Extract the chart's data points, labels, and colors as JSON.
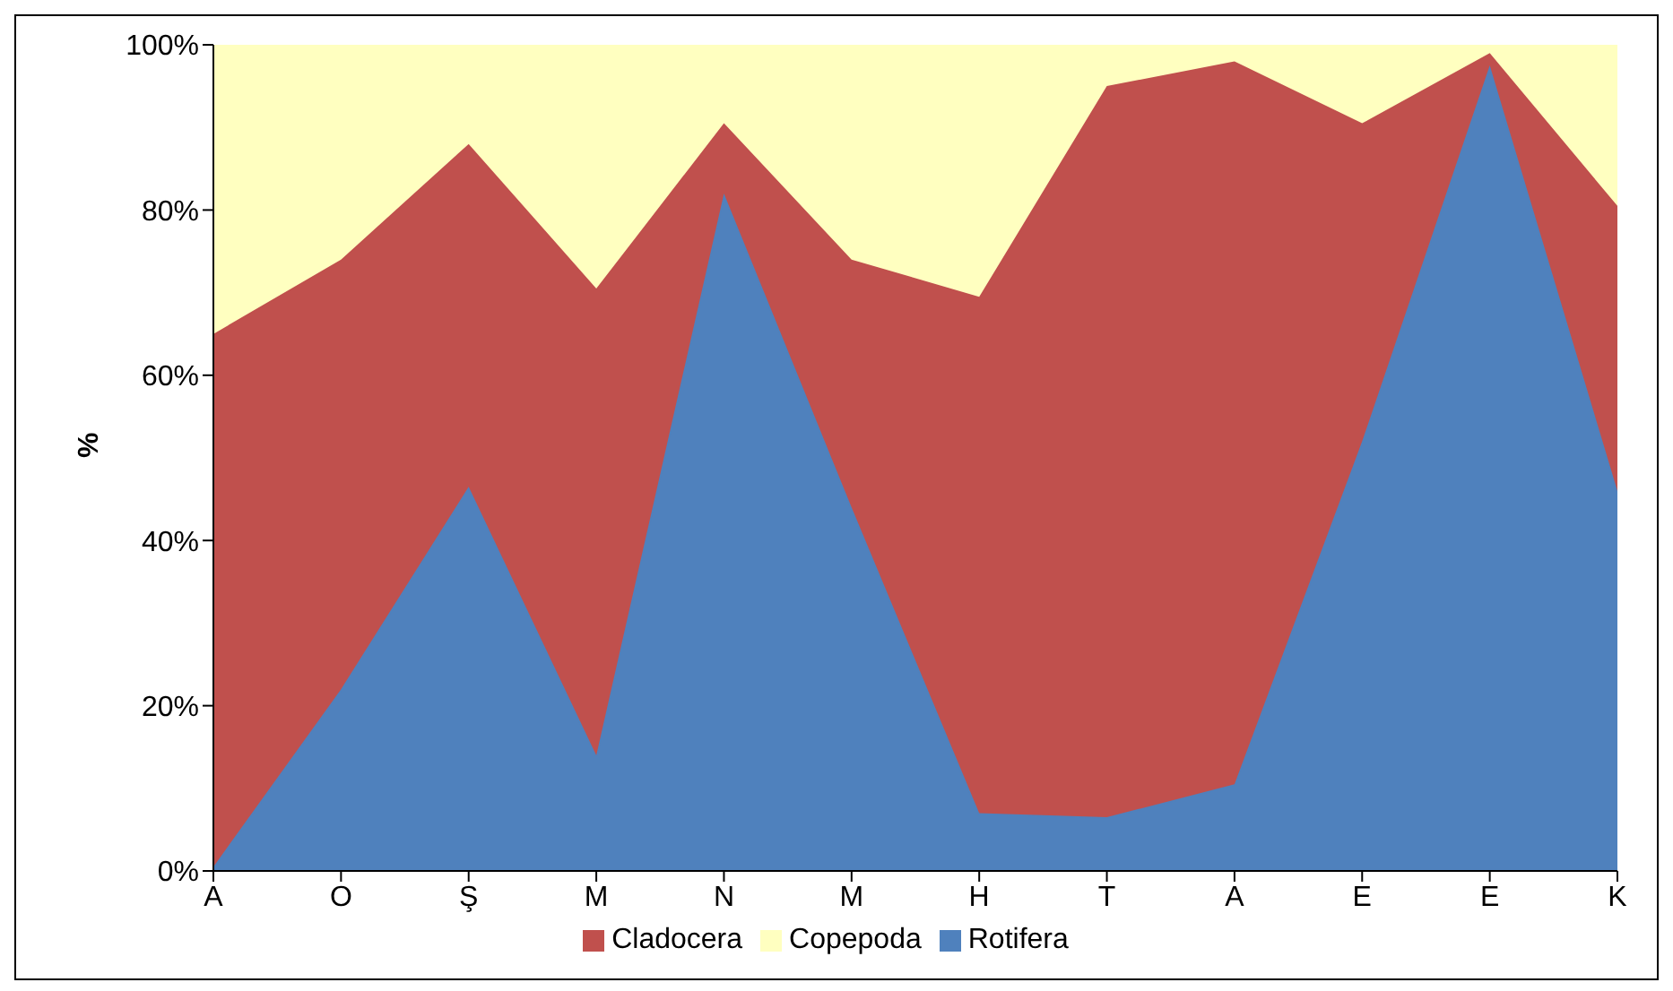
{
  "chart_data": {
    "type": "area",
    "stacked": true,
    "ylabel": "%",
    "categories": [
      "A",
      "O",
      "Ş",
      "M",
      "N",
      "M",
      "H",
      "T",
      "A",
      "E",
      "E",
      "K"
    ],
    "series": [
      {
        "name": "Rotifera",
        "color": "#4f81bd",
        "values": [
          0.5,
          22,
          46.5,
          14,
          82,
          44,
          7,
          6.5,
          10.5,
          52,
          97.5,
          46
        ]
      },
      {
        "name": "Cladocera",
        "color": "#c0504d",
        "values": [
          64.5,
          52,
          41.5,
          56.5,
          8.5,
          30,
          62.5,
          88.5,
          87.5,
          38.5,
          1.5,
          34.5
        ]
      },
      {
        "name": "Copepoda",
        "color": "#ffffc0",
        "values": [
          35,
          26,
          12,
          29.5,
          9.5,
          26,
          30.5,
          5,
          2,
          9.5,
          1,
          19.5
        ]
      }
    ],
    "ylim": [
      0,
      100
    ],
    "yticks": [
      {
        "value": 0,
        "label": "0%"
      },
      {
        "value": 20,
        "label": "20%"
      },
      {
        "value": 40,
        "label": "40%"
      },
      {
        "value": 60,
        "label": "60%"
      },
      {
        "value": 80,
        "label": "80%"
      },
      {
        "value": 100,
        "label": "100%"
      }
    ],
    "grid": false,
    "legend": "bottom"
  }
}
